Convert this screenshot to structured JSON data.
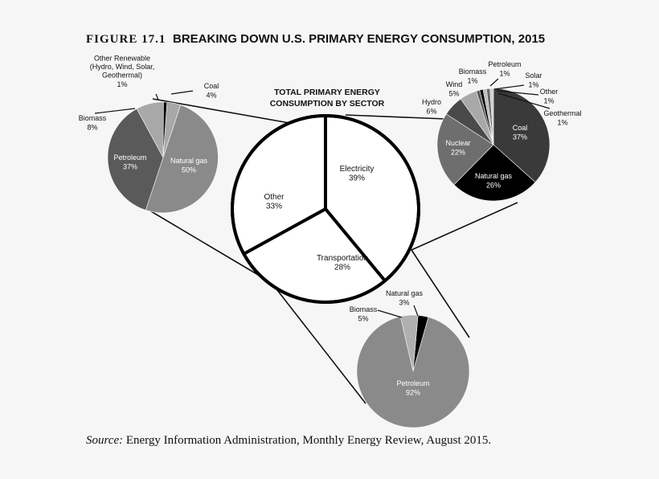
{
  "figure": {
    "label": "FIGURE 17.1",
    "title": "BREAKING DOWN U.S. PRIMARY ENERGY CONSUMPTION, 2015"
  },
  "source": {
    "prefix": "Source:",
    "text": "Energy Information Administration, Monthly Energy Review, August 2015."
  },
  "colors": {
    "black": "#000000",
    "dark": "#3a3a3a",
    "mid": "#6e6e6e",
    "gray": "#8a8a8a",
    "light": "#a8a8a8",
    "white": "#ffffff"
  },
  "chart_data": [
    {
      "id": "total",
      "type": "pie",
      "title": "TOTAL PRIMARY ENERGY\nCONSUMPTION BY SECTOR",
      "slices": [
        {
          "label": "Electricity",
          "value": 39,
          "text": "39%",
          "color": "#ffffff"
        },
        {
          "label": "Transportation",
          "value": 28,
          "text": "28%",
          "color": "#ffffff"
        },
        {
          "label": "Other",
          "value": 33,
          "text": "33%",
          "color": "#ffffff"
        }
      ]
    },
    {
      "id": "other",
      "type": "pie",
      "title": "",
      "slices": [
        {
          "label": "Coal",
          "value": 4,
          "text": "4%",
          "color": "#a8a8a8"
        },
        {
          "label": "Natural gas",
          "value": 50,
          "text": "50%",
          "color": "#8a8a8a"
        },
        {
          "label": "Petroleum",
          "value": 37,
          "text": "37%",
          "color": "#5a5a5a"
        },
        {
          "label": "Biomass",
          "value": 8,
          "text": "8%",
          "color": "#a8a8a8"
        },
        {
          "label": "Other Renewable\n(Hydro, Wind, Solar,\nGeothermal)",
          "value": 1,
          "text": "1%",
          "color": "#000000"
        }
      ]
    },
    {
      "id": "electricity",
      "type": "pie",
      "title": "",
      "slices": [
        {
          "label": "Coal",
          "value": 37,
          "text": "37%",
          "color": "#3a3a3a"
        },
        {
          "label": "Natural gas",
          "value": 26,
          "text": "26%",
          "color": "#000000"
        },
        {
          "label": "Nuclear",
          "value": 22,
          "text": "22%",
          "color": "#6e6e6e"
        },
        {
          "label": "Hydro",
          "value": 6,
          "text": "6%",
          "color": "#4a4a4a"
        },
        {
          "label": "Wind",
          "value": 5,
          "text": "5%",
          "color": "#a8a8a8"
        },
        {
          "label": "Biomass",
          "value": 1,
          "text": "1%",
          "color": "#5a5a5a"
        },
        {
          "label": "Petroleum",
          "value": 1,
          "text": "1%",
          "color": "#000000"
        },
        {
          "label": "Solar",
          "value": 1,
          "text": "1%",
          "color": "#bbbbbb"
        },
        {
          "label": "Other",
          "value": 1,
          "text": "1%",
          "color": "#666666"
        },
        {
          "label": "Geothermal",
          "value": 1,
          "text": "1%",
          "color": "#d0d0d0"
        }
      ]
    },
    {
      "id": "transportation",
      "type": "pie",
      "title": "",
      "slices": [
        {
          "label": "Natural gas",
          "value": 3,
          "text": "3%",
          "color": "#000000"
        },
        {
          "label": "Petroleum",
          "value": 92,
          "text": "92%",
          "color": "#8a8a8a"
        },
        {
          "label": "Biomass",
          "value": 5,
          "text": "5%",
          "color": "#b0b0b0"
        }
      ]
    }
  ]
}
